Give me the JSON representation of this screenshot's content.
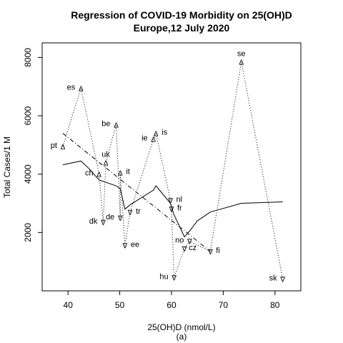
{
  "chart_data": {
    "type": "scatter",
    "title": [
      "Regression of COVID-19 Morbidity on 25(OH)D",
      "Europe,12 July 2020"
    ],
    "xlabel": "25(OH)D (nmol/L)",
    "ylabel": "Total Cases/1 M",
    "caption": "(a)",
    "xlim": [
      35,
      85
    ],
    "ylim": [
      0,
      8500
    ],
    "x_ticks": [
      40,
      50,
      60,
      70,
      80
    ],
    "y_ticks": [
      2000,
      4000,
      6000,
      8000
    ],
    "grid": false,
    "marker_above": "Δ",
    "marker_below": "∇",
    "points": [
      {
        "label": "pt",
        "x": 39.0,
        "y": 4950,
        "marker": "above"
      },
      {
        "label": "es",
        "x": 42.5,
        "y": 6950,
        "marker": "above"
      },
      {
        "label": "ch",
        "x": 46.0,
        "y": 4000,
        "marker": "above"
      },
      {
        "label": "dk",
        "x": 46.8,
        "y": 2350,
        "marker": "below"
      },
      {
        "label": "uk",
        "x": 47.3,
        "y": 4400,
        "marker": "above"
      },
      {
        "label": "be",
        "x": 49.3,
        "y": 5700,
        "marker": "above"
      },
      {
        "label": "de",
        "x": 50.1,
        "y": 2500,
        "marker": "below"
      },
      {
        "label": "it",
        "x": 50.1,
        "y": 4050,
        "marker": "above"
      },
      {
        "label": "ee",
        "x": 51.0,
        "y": 1550,
        "marker": "below"
      },
      {
        "label": "tr",
        "x": 52.0,
        "y": 2700,
        "marker": "below"
      },
      {
        "label": "ie",
        "x": 56.5,
        "y": 5200,
        "marker": "above"
      },
      {
        "label": "is",
        "x": 57.0,
        "y": 5400,
        "marker": "above"
      },
      {
        "label": "nl",
        "x": 59.8,
        "y": 3100,
        "marker": "below"
      },
      {
        "label": "fr",
        "x": 60.0,
        "y": 2800,
        "marker": "below"
      },
      {
        "label": "hu",
        "x": 60.5,
        "y": 450,
        "marker": "below"
      },
      {
        "label": "cz",
        "x": 62.5,
        "y": 1450,
        "marker": "below"
      },
      {
        "label": "no",
        "x": 63.5,
        "y": 1700,
        "marker": "below"
      },
      {
        "label": "fi",
        "x": 67.5,
        "y": 1350,
        "marker": "below"
      },
      {
        "label": "se",
        "x": 73.5,
        "y": 7850,
        "marker": "above"
      },
      {
        "label": "sk",
        "x": 81.5,
        "y": 400,
        "marker": "below"
      }
    ],
    "connector_order": [
      "pt",
      "es",
      "ch",
      "dk",
      "uk",
      "be",
      "de",
      "it",
      "ee",
      "tr",
      "ie",
      "is",
      "nl",
      "fr",
      "hu",
      "cz",
      "no",
      "fi",
      "se",
      "sk"
    ],
    "smooth_fit": [
      [
        39.0,
        4320
      ],
      [
        42.5,
        4450
      ],
      [
        44.0,
        4200
      ],
      [
        46.0,
        3800
      ],
      [
        49.3,
        3600
      ],
      [
        50.1,
        3500
      ],
      [
        51.0,
        2800
      ],
      [
        52.0,
        2950
      ],
      [
        56.5,
        3450
      ],
      [
        57.0,
        3600
      ],
      [
        59.8,
        3000
      ],
      [
        60.5,
        2600
      ],
      [
        62.5,
        1850
      ],
      [
        63.5,
        2050
      ],
      [
        65.0,
        2400
      ],
      [
        67.5,
        2700
      ],
      [
        73.5,
        3000
      ],
      [
        81.5,
        3050
      ]
    ],
    "regression_line": [
      [
        39.0,
        5400
      ],
      [
        67.5,
        1350
      ]
    ]
  }
}
